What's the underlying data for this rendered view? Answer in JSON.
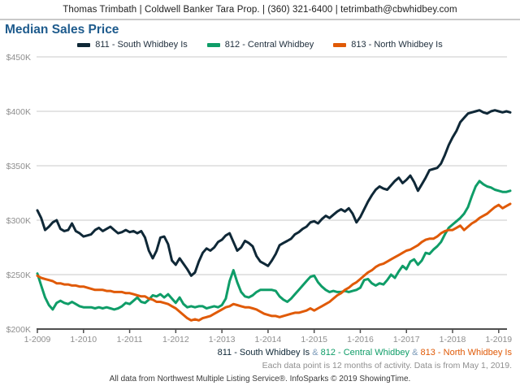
{
  "header": {
    "contact": "Thomas Trimbath | Coldwell Banker Tara Prop. | (360) 321-6400 | tetrimbath@cbwhidbey.com"
  },
  "title": "Median Sales Price",
  "legend": [
    {
      "id": "811",
      "label": "811 - South Whidbey Is",
      "color": "#0f2837"
    },
    {
      "id": "812",
      "label": "812 - Central Whidbey",
      "color": "#0f9d68"
    },
    {
      "id": "813",
      "label": "813 - North Whidbey Is",
      "color": "#e05a07"
    }
  ],
  "chart_data": {
    "type": "line",
    "title": "Median Sales Price",
    "x_frequency": "monthly",
    "x_start": "2009-01",
    "x_end": "2019-04",
    "x_tick_labels": [
      "1-2009",
      "1-2010",
      "1-2011",
      "1-2012",
      "1-2013",
      "1-2014",
      "1-2015",
      "1-2016",
      "1-2017",
      "1-2018",
      "1-2019"
    ],
    "y_unit": "USD thousands",
    "ylim": [
      200,
      450
    ],
    "y_ticks": [
      450,
      400,
      350,
      300,
      250,
      200
    ],
    "y_tick_labels": [
      "$450K",
      "$400K",
      "$350K",
      "$300K",
      "$250K",
      "$200K"
    ],
    "grid": "horizontal",
    "legend_position": "top",
    "series": [
      {
        "id": "811",
        "name": "811 - South Whidbey Is",
        "color": "#0f2837",
        "values": [
          309,
          302,
          291,
          294,
          298,
          300,
          292,
          290,
          291,
          297,
          290,
          288,
          285,
          286,
          287,
          291,
          293,
          290,
          292,
          294,
          291,
          288,
          289,
          291,
          289,
          290,
          288,
          290,
          284,
          272,
          265,
          272,
          284,
          285,
          278,
          263,
          259,
          265,
          260,
          255,
          249,
          252,
          262,
          270,
          274,
          272,
          275,
          280,
          282,
          286,
          288,
          280,
          272,
          275,
          281,
          279,
          276,
          267,
          262,
          260,
          258,
          263,
          269,
          277,
          279,
          281,
          283,
          287,
          289,
          292,
          294,
          298,
          299,
          297,
          301,
          304,
          302,
          305,
          308,
          310,
          308,
          311,
          306,
          298,
          303,
          310,
          317,
          323,
          328,
          331,
          329,
          328,
          332,
          336,
          339,
          334,
          337,
          341,
          335,
          327,
          333,
          339,
          346,
          347,
          348,
          352,
          360,
          369,
          376,
          382,
          390,
          394,
          398,
          399,
          400,
          401,
          399,
          398,
          400,
          401,
          400,
          399,
          400,
          399
        ]
      },
      {
        "id": "812",
        "name": "812 - Central Whidbey",
        "color": "#0f9d68",
        "values": [
          251,
          240,
          229,
          222,
          218,
          224,
          226,
          224,
          223,
          225,
          223,
          221,
          220,
          220,
          220,
          219,
          220,
          219,
          220,
          219,
          218,
          219,
          221,
          224,
          223,
          226,
          229,
          225,
          224,
          227,
          231,
          230,
          232,
          229,
          232,
          228,
          224,
          229,
          223,
          220,
          221,
          220,
          221,
          221,
          219,
          220,
          221,
          220,
          222,
          228,
          244,
          254,
          243,
          234,
          230,
          229,
          231,
          234,
          236,
          236,
          236,
          236,
          235,
          230,
          227,
          225,
          228,
          232,
          236,
          240,
          244,
          248,
          249,
          243,
          239,
          236,
          234,
          235,
          234,
          234,
          235,
          234,
          235,
          236,
          238,
          245,
          246,
          242,
          240,
          242,
          241,
          245,
          250,
          247,
          253,
          258,
          255,
          262,
          264,
          259,
          263,
          270,
          269,
          273,
          276,
          280,
          287,
          293,
          296,
          299,
          302,
          306,
          312,
          322,
          331,
          336,
          333,
          331,
          330,
          328,
          327,
          326,
          326,
          327
        ]
      },
      {
        "id": "813",
        "name": "813 - North Whidbey Is",
        "color": "#e05a07",
        "values": [
          249,
          247,
          246,
          245,
          244,
          242,
          242,
          241,
          241,
          240,
          240,
          239,
          239,
          238,
          237,
          236,
          236,
          236,
          235,
          235,
          234,
          234,
          234,
          233,
          233,
          232,
          231,
          230,
          230,
          228,
          227,
          225,
          225,
          224,
          223,
          221,
          219,
          216,
          213,
          210,
          208,
          209,
          208,
          210,
          211,
          212,
          214,
          216,
          218,
          220,
          221,
          223,
          222,
          221,
          220,
          220,
          219,
          218,
          216,
          214,
          213,
          212,
          212,
          211,
          212,
          213,
          214,
          215,
          215,
          216,
          217,
          219,
          217,
          219,
          221,
          223,
          225,
          228,
          231,
          233,
          236,
          238,
          241,
          243,
          246,
          249,
          252,
          254,
          257,
          259,
          260,
          262,
          264,
          266,
          268,
          270,
          272,
          273,
          275,
          277,
          280,
          282,
          283,
          283,
          285,
          288,
          290,
          291,
          291,
          293,
          295,
          291,
          294,
          297,
          299,
          302,
          304,
          306,
          309,
          312,
          314,
          311,
          313,
          315
        ]
      }
    ]
  },
  "footer": {
    "separator": "&",
    "note": "Each data point is 12 months of activity. Data is from May 1, 2019.",
    "credit": "All data from Northwest Multiple Listing Service®. InfoSparks © 2019 ShowingTime."
  }
}
